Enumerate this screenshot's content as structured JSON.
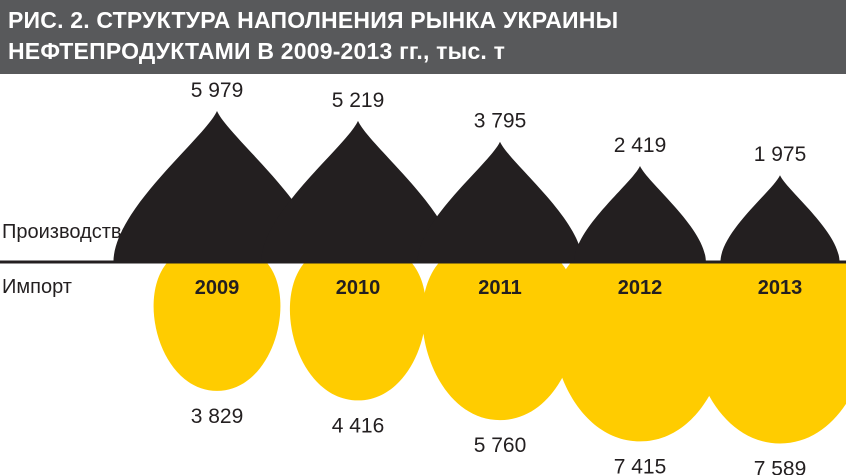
{
  "title": {
    "line1": "РИС. 2. СТРУКТУРА НАПОЛНЕНИЯ РЫНКА УКРАИНЫ",
    "line2": "НЕФТЕПРОДУКТАМИ В 2009-2013 гг., тыс. т"
  },
  "labels": {
    "production": "Производство",
    "import": "Импорт"
  },
  "colors": {
    "production": "#231f20",
    "import": "#ffcc00",
    "title_bg": "#58595b"
  },
  "chart_data": {
    "type": "bar",
    "title": "РИС. 2. СТРУКТУРА НАПОЛНЕНИЯ РЫНКА УКРАИНЫ НЕФТЕПРОДУКТАМИ В 2009-2013 гг., тыс. т",
    "categories": [
      "2009",
      "2010",
      "2011",
      "2012",
      "2013"
    ],
    "series": [
      {
        "name": "Производство",
        "values": [
          5979,
          5219,
          3795,
          2419,
          1975
        ],
        "labels": [
          "5 979",
          "5 219",
          "3 795",
          "2 419",
          "1 975"
        ]
      },
      {
        "name": "Импорт",
        "values": [
          3829,
          4416,
          5760,
          7415,
          7589
        ],
        "labels": [
          "3 829",
          "4 416",
          "5 760",
          "7 415",
          "7 589"
        ]
      }
    ],
    "grid": false
  }
}
